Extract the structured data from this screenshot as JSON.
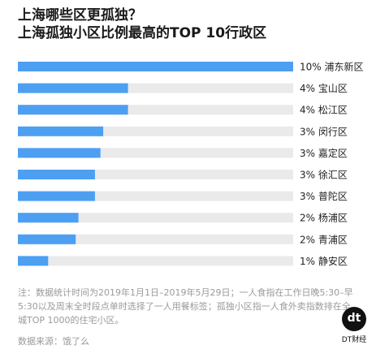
{
  "title_line1": "上海哪些区更孤独？",
  "title_line2": "上海孤独小区比例最高的TOP 10行政区",
  "note": "注：数据统计时间为2019年1月1日–2019年5月29日；一人食指在工作日晚5:30–早5:30以及周末全时段点单时选择了一人用餐标签；孤独小区指一人食外卖指数排在全城TOP 1000的住宅小区。",
  "source": "数据来源：饿了么",
  "logo": {
    "mark": "dt",
    "text": "DT财经"
  },
  "colors": {
    "bar": "#4d9ff2",
    "track": "#eaeaea"
  },
  "chart_data": {
    "type": "bar",
    "orientation": "horizontal",
    "unit": "%",
    "xlim": [
      0,
      10
    ],
    "categories": [
      "浦东新区",
      "宝山区",
      "松江区",
      "闵行区",
      "嘉定区",
      "徐汇区",
      "普陀区",
      "杨浦区",
      "青浦区",
      "静安区"
    ],
    "labels": [
      "10%",
      "4%",
      "4%",
      "3%",
      "3%",
      "3%",
      "3%",
      "2%",
      "2%",
      "1%"
    ],
    "values": [
      10,
      4,
      4,
      3.1,
      3.0,
      2.8,
      2.8,
      2.2,
      2.1,
      1.1
    ]
  }
}
